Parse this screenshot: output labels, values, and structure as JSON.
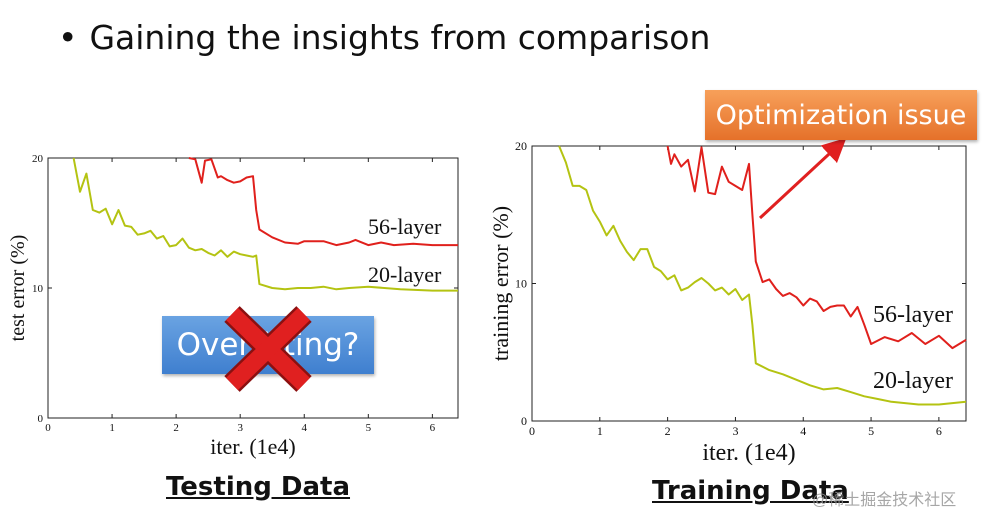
{
  "slide": {
    "bullet": "•",
    "title": "Gaining the insights from comparison",
    "callout": "Optimization issue",
    "overfitting_label": "Overfitting?",
    "caption_left": "Testing Data",
    "caption_right": "Training Data",
    "watermark": "@稀土掘金技术社区",
    "colors": {
      "callout": "#e5712a",
      "overfit_box": "#4a8ad6",
      "cross": "#e02020"
    }
  },
  "chart_data": [
    {
      "type": "line",
      "title": "",
      "xlabel": "iter. (1e4)",
      "ylabel": "test error (%)",
      "xlim": [
        0,
        6.4
      ],
      "ylim": [
        0,
        20
      ],
      "xticks": [
        0,
        1,
        2,
        3,
        4,
        5,
        6
      ],
      "yticks": [
        0,
        10,
        20
      ],
      "grid": false,
      "series": [
        {
          "name": "56-layer",
          "color": "#e0201c",
          "x": [
            2.2,
            2.3,
            2.4,
            2.45,
            2.55,
            2.65,
            2.7,
            2.8,
            2.9,
            3.0,
            3.1,
            3.2,
            3.25,
            3.3,
            3.5,
            3.7,
            3.9,
            4.0,
            4.3,
            4.5,
            4.7,
            4.8,
            5.0,
            5.2,
            5.4,
            5.7,
            6.0,
            6.4
          ],
          "y": [
            20,
            19.9,
            18.1,
            19.8,
            19.9,
            18.5,
            18.6,
            18.3,
            18.1,
            18.2,
            18.5,
            18.6,
            16.0,
            14.5,
            13.9,
            13.5,
            13.4,
            13.6,
            13.6,
            13.3,
            13.5,
            13.7,
            13.3,
            13.5,
            13.3,
            13.4,
            13.3,
            13.3
          ]
        },
        {
          "name": "20-layer",
          "color": "#b4c312",
          "x": [
            0.4,
            0.5,
            0.6,
            0.7,
            0.8,
            0.9,
            1.0,
            1.1,
            1.2,
            1.3,
            1.4,
            1.5,
            1.6,
            1.7,
            1.8,
            1.9,
            2.0,
            2.1,
            2.2,
            2.3,
            2.4,
            2.5,
            2.6,
            2.7,
            2.8,
            2.9,
            3.0,
            3.1,
            3.2,
            3.25,
            3.3,
            3.5,
            3.7,
            3.9,
            4.1,
            4.3,
            4.5,
            4.7,
            5.0,
            5.5,
            6.0,
            6.4
          ],
          "y": [
            20,
            17.4,
            18.8,
            16.0,
            15.8,
            16.1,
            14.9,
            16.0,
            14.8,
            14.7,
            14.1,
            14.2,
            14.4,
            13.8,
            14.0,
            13.2,
            13.3,
            13.8,
            13.1,
            12.9,
            13.0,
            12.7,
            12.5,
            12.9,
            12.4,
            12.8,
            12.6,
            12.5,
            12.4,
            12.5,
            10.3,
            10.0,
            9.9,
            10.0,
            10.0,
            10.1,
            9.9,
            10.0,
            10.1,
            9.9,
            9.8,
            9.8
          ]
        }
      ]
    },
    {
      "type": "line",
      "title": "",
      "xlabel": "iter. (1e4)",
      "ylabel": "training error (%)",
      "xlim": [
        0,
        6.4
      ],
      "ylim": [
        0,
        20
      ],
      "xticks": [
        0,
        1,
        2,
        3,
        4,
        5,
        6
      ],
      "yticks": [
        0,
        10,
        20
      ],
      "grid": false,
      "series": [
        {
          "name": "56-layer",
          "color": "#e0201c",
          "x": [
            2.0,
            2.05,
            2.1,
            2.2,
            2.3,
            2.4,
            2.5,
            2.6,
            2.7,
            2.8,
            2.9,
            3.0,
            3.1,
            3.2,
            3.25,
            3.3,
            3.4,
            3.5,
            3.6,
            3.7,
            3.8,
            3.9,
            4.0,
            4.1,
            4.2,
            4.3,
            4.4,
            4.5,
            4.6,
            4.7,
            4.8,
            4.9,
            5.0,
            5.2,
            5.4,
            5.6,
            5.8,
            6.0,
            6.2,
            6.4
          ],
          "y": [
            20,
            18.7,
            19.4,
            18.5,
            19.0,
            16.7,
            19.9,
            16.6,
            16.5,
            18.5,
            17.4,
            17.1,
            16.8,
            18.7,
            15.0,
            11.6,
            10.1,
            10.3,
            9.6,
            9.1,
            9.3,
            9.0,
            8.4,
            8.9,
            8.7,
            8.0,
            8.3,
            8.4,
            8.4,
            7.6,
            8.3,
            7.0,
            5.6,
            6.1,
            5.8,
            6.4,
            5.6,
            6.2,
            5.3,
            5.9
          ]
        },
        {
          "name": "20-layer",
          "color": "#b4c312",
          "x": [
            0.4,
            0.5,
            0.6,
            0.7,
            0.8,
            0.9,
            1.0,
            1.1,
            1.2,
            1.3,
            1.4,
            1.5,
            1.6,
            1.7,
            1.8,
            1.9,
            2.0,
            2.1,
            2.2,
            2.3,
            2.4,
            2.5,
            2.6,
            2.7,
            2.8,
            2.9,
            3.0,
            3.1,
            3.2,
            3.25,
            3.3,
            3.5,
            3.7,
            3.9,
            4.1,
            4.3,
            4.5,
            4.7,
            4.9,
            5.1,
            5.3,
            5.5,
            5.7,
            6.0,
            6.2,
            6.4
          ],
          "y": [
            20,
            18.8,
            17.1,
            17.1,
            16.8,
            15.3,
            14.5,
            13.5,
            14.2,
            13.1,
            12.3,
            11.7,
            12.5,
            12.5,
            11.2,
            10.9,
            10.3,
            10.6,
            9.5,
            9.7,
            10.1,
            10.4,
            10.0,
            9.5,
            9.7,
            9.2,
            9.6,
            8.8,
            9.2,
            7.0,
            4.2,
            3.7,
            3.4,
            3.0,
            2.6,
            2.3,
            2.4,
            2.1,
            1.8,
            1.6,
            1.4,
            1.3,
            1.2,
            1.2,
            1.3,
            1.4
          ]
        }
      ]
    }
  ]
}
